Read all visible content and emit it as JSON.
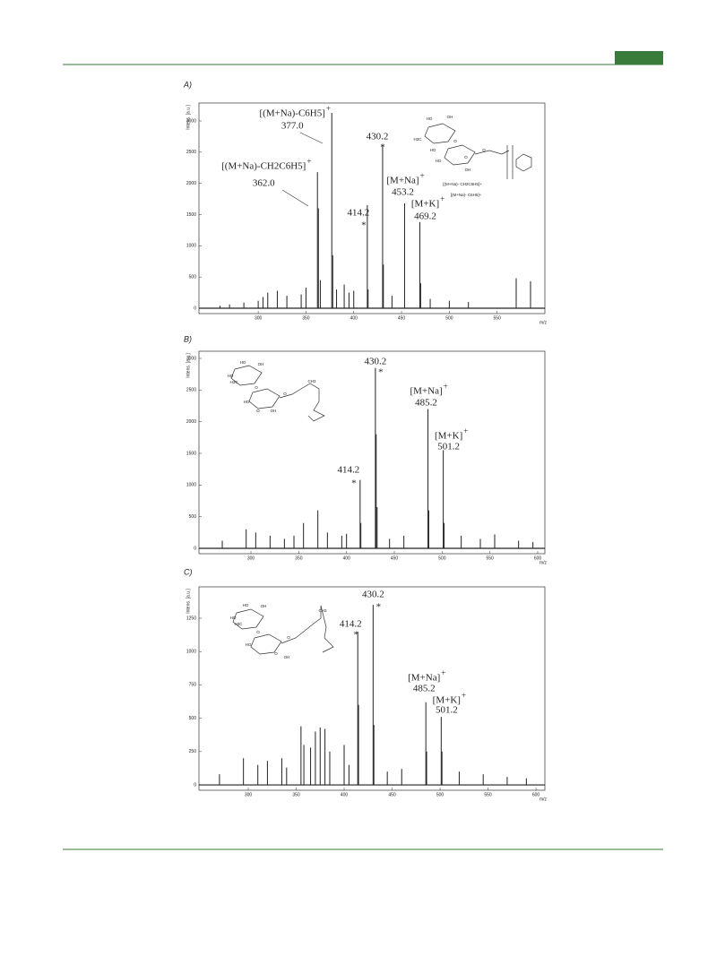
{
  "panel_labels": [
    "A)",
    "B)",
    "C)"
  ],
  "chart_data": [
    {
      "type": "stem",
      "y_label": "Intens. [a.u.]",
      "x_label": "m/z",
      "xlim": [
        238,
        600
      ],
      "ylim": [
        -86,
        3287
      ],
      "xticks": [
        300,
        350,
        400,
        450,
        500,
        550
      ],
      "yticks": [
        0,
        500,
        1000,
        1500,
        2000,
        2500,
        3000
      ],
      "color": "#222222",
      "x": [
        260,
        270,
        285,
        300,
        305,
        310,
        320,
        330,
        345,
        350,
        362,
        363,
        365,
        377,
        378,
        382,
        390,
        395,
        400,
        414.2,
        415,
        430.2,
        431,
        440,
        453.2,
        469.2,
        470,
        480,
        500,
        520,
        570,
        585
      ],
      "values": [
        40,
        60,
        90,
        120,
        180,
        250,
        280,
        200,
        220,
        330,
        2180,
        1600,
        450,
        3130,
        850,
        300,
        380,
        250,
        280,
        1650,
        300,
        2620,
        700,
        200,
        1680,
        1380,
        400,
        150,
        120,
        100,
        480,
        430
      ],
      "annotations": [
        {
          "ion": "[(M+Na)-C6H5]",
          "charge": "+",
          "mz": {
            "value": 377.0,
            "label": "377.0"
          }
        },
        {
          "ion": "[(M+Na)-CH2C6H5]",
          "charge": "+",
          "mz": {
            "value": 362.0,
            "label": "362.0"
          }
        },
        {
          "mz": {
            "value": 414.2,
            "label": "414.2"
          },
          "marker": "*"
        },
        {
          "mz": {
            "value": 430.2,
            "label": "430.2"
          },
          "marker": "*"
        },
        {
          "ion": "[M+Na]",
          "charge": "+",
          "mz": {
            "value": 453.2,
            "label": "453.2"
          }
        },
        {
          "ion": "[M+K]",
          "charge": "+",
          "mz": {
            "value": 469.2,
            "label": "469.2"
          }
        }
      ],
      "structure_labels": [
        "HO",
        "OH",
        "HO",
        "H3C",
        "O",
        "HO",
        "O",
        "OH",
        "O",
        "[(M+Na)- CH2C6H5]+",
        "[(M+Na)- C6H5]+"
      ]
    },
    {
      "type": "stem",
      "y_label": "Intens. [a.u.]",
      "x_label": "m/z",
      "xlim": [
        245.6,
        607.5
      ],
      "ylim": [
        -85,
        3113
      ],
      "xticks": [
        300,
        350,
        400,
        450,
        500,
        550,
        600
      ],
      "yticks": [
        0,
        500,
        1000,
        1500,
        2000,
        2500,
        3000
      ],
      "color": "#222222",
      "x": [
        270,
        295,
        305,
        320,
        335,
        345,
        355,
        370,
        380,
        395,
        400,
        414.2,
        415,
        430.2,
        431,
        432,
        445,
        460,
        485.2,
        486,
        501.2,
        502,
        520,
        540,
        555,
        580,
        595
      ],
      "values": [
        120,
        300,
        250,
        200,
        150,
        200,
        400,
        600,
        250,
        200,
        230,
        1080,
        400,
        2850,
        1800,
        650,
        150,
        200,
        2200,
        600,
        1550,
        400,
        200,
        150,
        220,
        120,
        100
      ],
      "annotations": [
        {
          "mz": {
            "value": 430.2,
            "label": "430.2"
          },
          "marker": "*"
        },
        {
          "ion": "[M+Na]",
          "charge": "+",
          "mz": {
            "value": 485.2,
            "label": "485.2"
          }
        },
        {
          "ion": "[M+K]",
          "charge": "+",
          "mz": {
            "value": 501.2,
            "label": "501.2"
          }
        },
        {
          "mz": {
            "value": 414.2,
            "label": "414.2"
          },
          "marker": "*"
        }
      ],
      "structure_labels": [
        "HO",
        "OH",
        "HO",
        "H3C",
        "O",
        "HO",
        "O",
        "OH",
        "O",
        "CH3"
      ]
    },
    {
      "type": "stem",
      "y_label": "Intens. [a.u.]",
      "x_label": "m/z",
      "xlim": [
        248.6,
        609.3
      ],
      "ylim": [
        -40,
        1485
      ],
      "xticks": [
        300,
        350,
        400,
        450,
        500,
        550,
        600
      ],
      "yticks": [
        0,
        250,
        500,
        750,
        1000,
        1250
      ],
      "color": "#222222",
      "x": [
        270,
        295,
        310,
        320,
        335,
        340,
        355,
        358,
        365,
        370,
        375,
        380,
        385,
        400,
        405,
        414.2,
        415,
        430.2,
        431,
        445,
        460,
        485.2,
        486,
        501.2,
        502,
        520,
        545,
        570,
        590
      ],
      "values": [
        80,
        200,
        150,
        180,
        200,
        130,
        440,
        300,
        280,
        400,
        430,
        420,
        250,
        300,
        150,
        1150,
        600,
        1350,
        450,
        100,
        120,
        620,
        250,
        510,
        250,
        100,
        80,
        60,
        50
      ],
      "annotations": [
        {
          "mz": {
            "value": 430.2,
            "label": "430.2"
          },
          "marker": "*"
        },
        {
          "mz": {
            "value": 414.2,
            "label": "414.2"
          },
          "marker": "*"
        },
        {
          "ion": "[M+Na]",
          "charge": "+",
          "mz": {
            "value": 485.2,
            "label": "485.2"
          }
        },
        {
          "ion": "[M+K]",
          "charge": "+",
          "mz": {
            "value": 501.2,
            "label": "501.2"
          }
        }
      ],
      "structure_labels": [
        "HO",
        "OH",
        "HO",
        "H3C",
        "O",
        "HO",
        "O",
        "OH",
        "O",
        "CH3"
      ]
    }
  ]
}
